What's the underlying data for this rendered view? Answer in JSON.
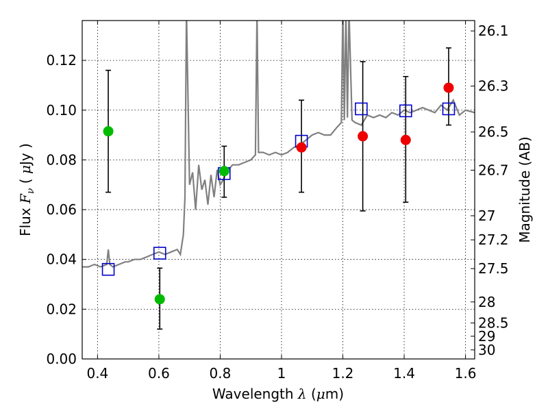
{
  "chart_data": {
    "type": "scatter",
    "xlabel_prefix": "Wavelength ",
    "xlabel_var": "λ",
    "xlabel_units_open": " (",
    "xlabel_mu": "μ",
    "xlabel_units_close": "m)",
    "ylabel_prefix": "Flux ",
    "ylabel_var": "F",
    "ylabel_sub": "ν",
    "ylabel_units_open": " ( ",
    "ylabel_mu": "μ",
    "ylabel_units_close": "Jy )",
    "y2label": "Magnitude (AB)",
    "xlim": [
      0.35,
      1.63
    ],
    "ylim": [
      0.0,
      0.136
    ],
    "x_ticks": [
      0.4,
      0.6,
      0.8,
      1.0,
      1.2,
      1.4,
      1.6
    ],
    "x_tick_labels": [
      "0.4",
      "0.6",
      "0.8",
      "1",
      "1.2",
      "1.4",
      "1.6"
    ],
    "y_ticks": [
      0.0,
      0.02,
      0.04,
      0.06,
      0.08,
      0.1,
      0.12
    ],
    "y_tick_labels": [
      "0.00",
      "0.02",
      "0.04",
      "0.06",
      "0.08",
      "0.10",
      "0.12"
    ],
    "y2_ticks": [
      26.1,
      26.3,
      26.5,
      26.7,
      27,
      27.2,
      27.5,
      28,
      28.5,
      29,
      30
    ],
    "y2_tick_labels": [
      "26.1",
      "26.3",
      "26.5",
      "26.7",
      "27",
      "27.2",
      "27.5",
      "28",
      "28.5",
      "29",
      "30"
    ],
    "grid": true,
    "series": [
      {
        "kind": "spectrum",
        "color": "#808080",
        "x": [
          0.35,
          0.37,
          0.39,
          0.41,
          0.43,
          0.435,
          0.44,
          0.45,
          0.47,
          0.49,
          0.5,
          0.52,
          0.54,
          0.56,
          0.58,
          0.6,
          0.62,
          0.64,
          0.66,
          0.67,
          0.68,
          0.685,
          0.69,
          0.7,
          0.71,
          0.72,
          0.73,
          0.74,
          0.75,
          0.76,
          0.77,
          0.78,
          0.79,
          0.8,
          0.81,
          0.82,
          0.84,
          0.86,
          0.88,
          0.9,
          0.915,
          0.92,
          0.925,
          0.94,
          0.96,
          0.98,
          1.0,
          1.02,
          1.04,
          1.06,
          1.08,
          1.1,
          1.12,
          1.14,
          1.16,
          1.18,
          1.195,
          1.2,
          1.205,
          1.21,
          1.215,
          1.22,
          1.23,
          1.24,
          1.26,
          1.28,
          1.3,
          1.32,
          1.34,
          1.36,
          1.38,
          1.4,
          1.42,
          1.44,
          1.46,
          1.48,
          1.5,
          1.52,
          1.54,
          1.56,
          1.58,
          1.6,
          1.63
        ],
        "y": [
          0.037,
          0.037,
          0.038,
          0.037,
          0.038,
          0.044,
          0.038,
          0.037,
          0.038,
          0.039,
          0.039,
          0.04,
          0.04,
          0.041,
          0.042,
          0.043,
          0.042,
          0.043,
          0.044,
          0.042,
          0.05,
          0.065,
          0.14,
          0.07,
          0.075,
          0.06,
          0.078,
          0.068,
          0.072,
          0.062,
          0.074,
          0.065,
          0.076,
          0.07,
          0.072,
          0.075,
          0.078,
          0.078,
          0.079,
          0.08,
          0.082,
          0.14,
          0.083,
          0.083,
          0.082,
          0.083,
          0.082,
          0.083,
          0.085,
          0.086,
          0.088,
          0.09,
          0.091,
          0.09,
          0.09,
          0.093,
          0.095,
          0.14,
          0.096,
          0.14,
          0.097,
          0.14,
          0.096,
          0.095,
          0.094,
          0.098,
          0.097,
          0.098,
          0.097,
          0.099,
          0.098,
          0.1,
          0.099,
          0.1,
          0.101,
          0.1,
          0.099,
          0.102,
          0.1,
          0.104,
          0.098,
          0.1,
          0.099
        ]
      },
      {
        "kind": "model-squares",
        "color": "#0000cc",
        "x": [
          0.435,
          0.603,
          0.813,
          1.065,
          1.26,
          1.405,
          1.545
        ],
        "y": [
          0.036,
          0.0425,
          0.0745,
          0.0875,
          0.1005,
          0.0997,
          0.1005
        ]
      },
      {
        "kind": "points-green",
        "color": "#00bb00",
        "x": [
          0.435,
          0.603,
          0.813
        ],
        "y": [
          0.0915,
          0.024,
          0.0755
        ],
        "yerr_low": [
          0.067,
          0.012,
          0.065
        ],
        "yerr_high": [
          0.116,
          0.0365,
          0.0855
        ]
      },
      {
        "kind": "points-red",
        "color": "#ee0000",
        "x": [
          1.065,
          1.265,
          1.405,
          1.545
        ],
        "y": [
          0.085,
          0.0895,
          0.088,
          0.109
        ],
        "yerr_low": [
          0.067,
          0.0595,
          0.063,
          0.094
        ],
        "yerr_high": [
          0.104,
          0.1195,
          0.1135,
          0.125
        ]
      }
    ]
  }
}
